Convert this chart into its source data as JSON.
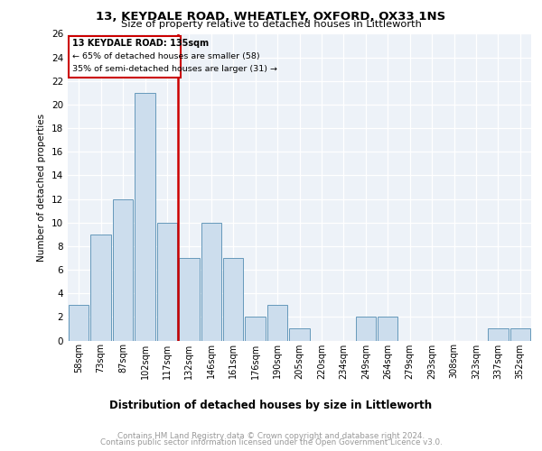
{
  "title1": "13, KEYDALE ROAD, WHEATLEY, OXFORD, OX33 1NS",
  "title2": "Size of property relative to detached houses in Littleworth",
  "xlabel": "Distribution of detached houses by size in Littleworth",
  "ylabel": "Number of detached properties",
  "categories": [
    "58sqm",
    "73sqm",
    "87sqm",
    "102sqm",
    "117sqm",
    "132sqm",
    "146sqm",
    "161sqm",
    "176sqm",
    "190sqm",
    "205sqm",
    "220sqm",
    "234sqm",
    "249sqm",
    "264sqm",
    "279sqm",
    "293sqm",
    "308sqm",
    "323sqm",
    "337sqm",
    "352sqm"
  ],
  "values": [
    3,
    9,
    12,
    21,
    10,
    7,
    10,
    7,
    2,
    3,
    1,
    0,
    0,
    2,
    2,
    0,
    0,
    0,
    0,
    1,
    1
  ],
  "bar_color": "#ccdded",
  "bar_edge_color": "#6699bb",
  "annotation_title": "13 KEYDALE ROAD: 135sqm",
  "annotation_line1": "← 65% of detached houses are smaller (58)",
  "annotation_line2": "35% of semi-detached houses are larger (31) →",
  "vline_color": "#cc0000",
  "annotation_box_edge_color": "#cc0000",
  "ylim": [
    0,
    26
  ],
  "yticks": [
    0,
    2,
    4,
    6,
    8,
    10,
    12,
    14,
    16,
    18,
    20,
    22,
    24,
    26
  ],
  "background_color": "#edf2f8",
  "grid_color": "#ffffff",
  "footer1": "Contains HM Land Registry data © Crown copyright and database right 2024.",
  "footer2": "Contains public sector information licensed under the Open Government Licence v3.0.",
  "footer_color": "#999999"
}
